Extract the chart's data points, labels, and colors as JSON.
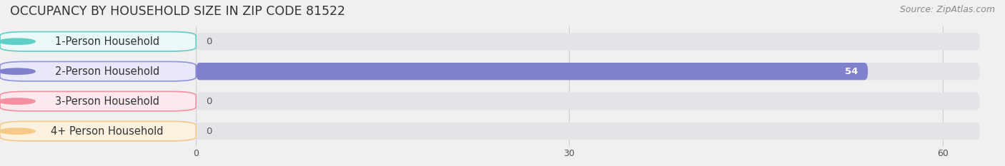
{
  "title": "OCCUPANCY BY HOUSEHOLD SIZE IN ZIP CODE 81522",
  "source": "Source: ZipAtlas.com",
  "categories": [
    "1-Person Household",
    "2-Person Household",
    "3-Person Household",
    "4+ Person Household"
  ],
  "values": [
    0,
    54,
    0,
    0
  ],
  "bar_colors": [
    "#5ecec6",
    "#8080cc",
    "#f590a0",
    "#f5c98a"
  ],
  "label_bg_colors": [
    "#eaf8f7",
    "#e8e8f8",
    "#fce8ed",
    "#fdf2e0"
  ],
  "label_border_colors": [
    "#5ecec6",
    "#9090dd",
    "#f590a0",
    "#f5c98a"
  ],
  "xlim_max": 63,
  "xticks": [
    0,
    30,
    60
  ],
  "background_color": "#f0f0f0",
  "bar_background_color": "#e4e4e8",
  "title_fontsize": 12.5,
  "source_fontsize": 9,
  "label_fontsize": 10.5,
  "value_fontsize": 9.5,
  "bar_height": 0.58
}
